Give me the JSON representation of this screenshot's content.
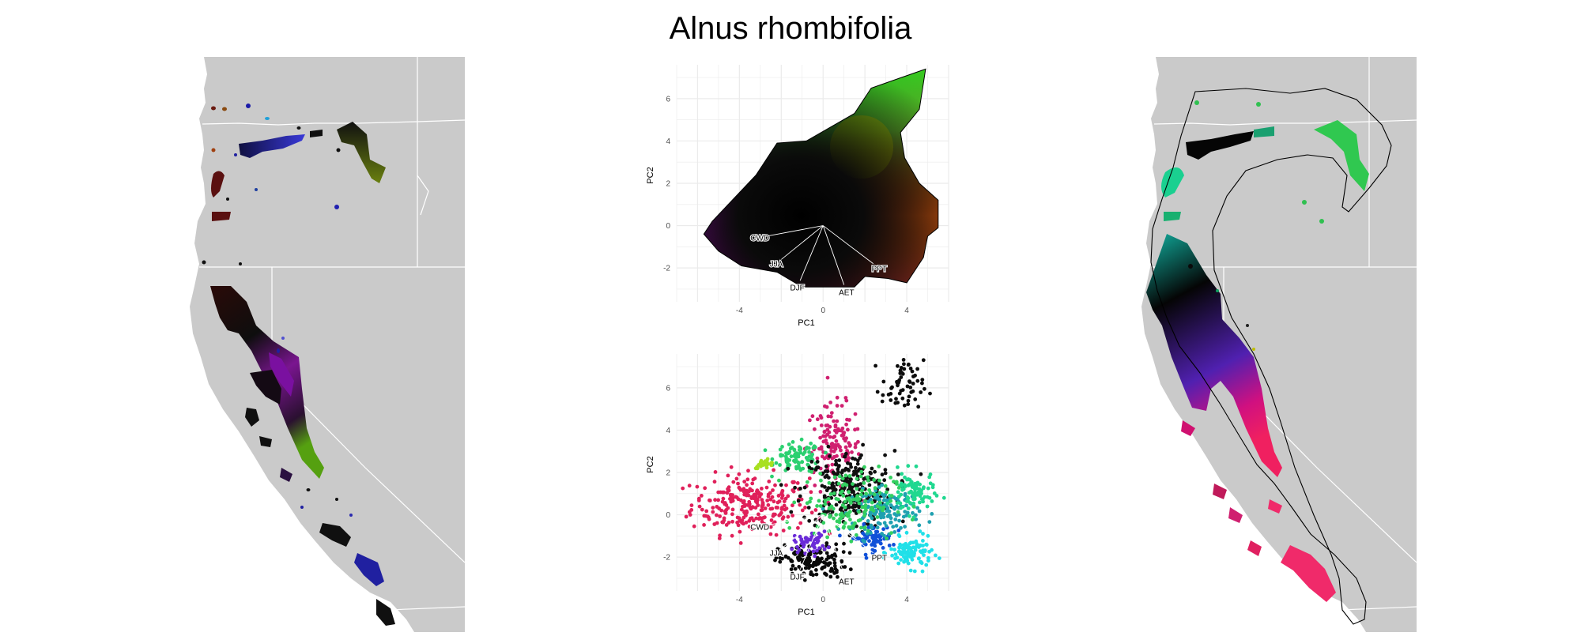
{
  "figure": {
    "title": "Alnus rhombifolia"
  },
  "colors": {
    "land": "#cacaca",
    "border": "#ffffff",
    "grid": "#ebebeb",
    "hull": "#000000"
  },
  "chart_data": [
    {
      "type": "scatter",
      "panel": "pca-top",
      "title": "",
      "xlabel": "PC1",
      "ylabel": "PC2",
      "xlim": [
        -7,
        6
      ],
      "ylim": [
        -3.6,
        7.6
      ],
      "x_ticks": [
        -4,
        0,
        4
      ],
      "y_ticks": [
        -2,
        0,
        2,
        4,
        6
      ],
      "grid": true,
      "loadings": [
        {
          "name": "CWD",
          "x": -2.7,
          "y": -0.5
        },
        {
          "name": "JJA",
          "x": -2.0,
          "y": -1.6
        },
        {
          "name": "DJF",
          "x": -1.1,
          "y": -2.6
        },
        {
          "name": "AET",
          "x": 1.0,
          "y": -2.8
        },
        {
          "name": "PPT",
          "x": 2.4,
          "y": -1.8
        }
      ],
      "hull": [
        [
          -5.7,
          -0.4
        ],
        [
          -5.3,
          0.2
        ],
        [
          -3.2,
          2.4
        ],
        [
          -2.2,
          3.9
        ],
        [
          -0.8,
          4.0
        ],
        [
          1.5,
          5.3
        ],
        [
          2.3,
          6.5
        ],
        [
          4.9,
          7.4
        ],
        [
          4.6,
          5.5
        ],
        [
          3.7,
          4.4
        ],
        [
          3.9,
          3.2
        ],
        [
          4.6,
          2.0
        ],
        [
          5.5,
          1.2
        ],
        [
          5.5,
          -0.1
        ],
        [
          5.0,
          -0.5
        ],
        [
          4.8,
          -1.5
        ],
        [
          4.0,
          -2.7
        ],
        [
          3.1,
          -2.5
        ],
        [
          2.0,
          -2.4
        ],
        [
          1.5,
          -2.9
        ],
        [
          -1.0,
          -2.9
        ],
        [
          -2.2,
          -2.2
        ],
        [
          -3.9,
          -1.9
        ],
        [
          -5.0,
          -1.2
        ]
      ]
    },
    {
      "type": "scatter",
      "panel": "pca-bottom",
      "title": "",
      "xlabel": "PC1",
      "ylabel": "PC2",
      "xlim": [
        -7,
        6
      ],
      "ylim": [
        -3.6,
        7.6
      ],
      "x_ticks": [
        -4,
        0,
        4
      ],
      "y_ticks": [
        -2,
        0,
        2,
        4,
        6
      ],
      "grid": true,
      "loadings": [
        {
          "name": "CWD",
          "x": -2.7,
          "y": -0.5
        },
        {
          "name": "JJA",
          "x": -2.0,
          "y": -1.6
        },
        {
          "name": "DJF",
          "x": -1.1,
          "y": -2.6
        },
        {
          "name": "AET",
          "x": 1.0,
          "y": -2.8
        },
        {
          "name": "PPT",
          "x": 2.4,
          "y": -1.8
        }
      ],
      "clusters": [
        {
          "color": "#e0205a",
          "cx": -3.5,
          "cy": 0.5,
          "rx": 2.8,
          "ry": 1.4,
          "n": 260
        },
        {
          "color": "#d02070",
          "cx": 0.5,
          "cy": 3.2,
          "rx": 1.3,
          "ry": 2.0,
          "n": 140
        },
        {
          "color": "#2bd070",
          "cx": -1.2,
          "cy": 2.7,
          "rx": 1.1,
          "ry": 0.7,
          "n": 90
        },
        {
          "color": "#a8e020",
          "cx": -2.8,
          "cy": 2.4,
          "rx": 0.5,
          "ry": 0.2,
          "n": 25
        },
        {
          "color": "#101010",
          "cx": 1.2,
          "cy": 1.2,
          "rx": 2.2,
          "ry": 1.8,
          "n": 260
        },
        {
          "color": "#0a0a0a",
          "cx": -0.5,
          "cy": -2.2,
          "rx": 1.6,
          "ry": 0.8,
          "n": 140
        },
        {
          "color": "#6a2ad8",
          "cx": -0.6,
          "cy": -1.3,
          "rx": 0.8,
          "ry": 0.5,
          "n": 50
        },
        {
          "color": "#1050d8",
          "cx": 2.3,
          "cy": -1.1,
          "rx": 1.0,
          "ry": 0.6,
          "n": 70
        },
        {
          "color": "#1fa0b0",
          "cx": 3.0,
          "cy": 0.2,
          "rx": 1.6,
          "ry": 1.0,
          "n": 150
        },
        {
          "color": "#20e0e8",
          "cx": 4.2,
          "cy": -1.8,
          "rx": 1.0,
          "ry": 0.7,
          "n": 110
        },
        {
          "color": "#20d890",
          "cx": 4.3,
          "cy": 1.0,
          "rx": 1.0,
          "ry": 1.0,
          "n": 90
        },
        {
          "color": "#33d060",
          "cx": 1.2,
          "cy": 0.6,
          "rx": 2.2,
          "ry": 1.6,
          "n": 150
        },
        {
          "color": "#0c0c0c",
          "cx": 3.8,
          "cy": 6.0,
          "rx": 1.0,
          "ry": 1.3,
          "n": 60
        }
      ]
    }
  ]
}
